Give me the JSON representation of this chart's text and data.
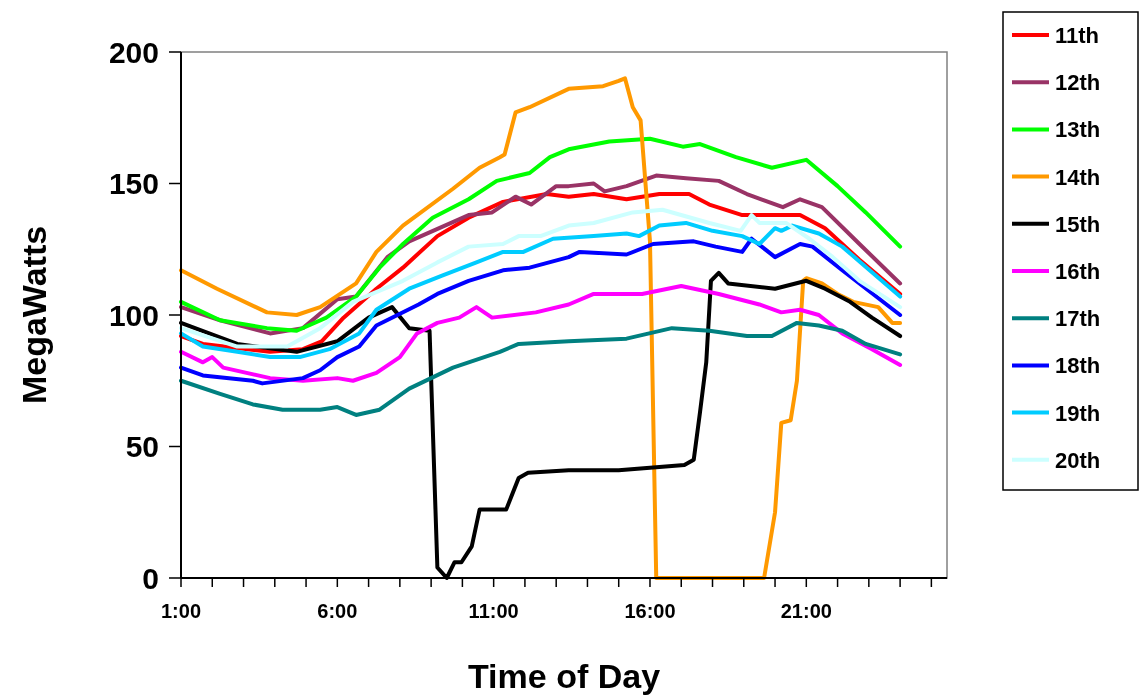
{
  "chart_data": {
    "type": "line",
    "xlabel": "Time of Day",
    "ylabel": "MegaWatts",
    "xlim": [
      1,
      25.5
    ],
    "ylim": [
      0,
      200
    ],
    "yticks": [
      0,
      50,
      100,
      150,
      200
    ],
    "xticks": [
      {
        "value": 1,
        "label": "1:00"
      },
      {
        "value": 2,
        "label": null
      },
      {
        "value": 3,
        "label": null
      },
      {
        "value": 4,
        "label": null
      },
      {
        "value": 5,
        "label": null
      },
      {
        "value": 6,
        "label": "6:00"
      },
      {
        "value": 7,
        "label": null
      },
      {
        "value": 8,
        "label": null
      },
      {
        "value": 9,
        "label": null
      },
      {
        "value": 10,
        "label": null
      },
      {
        "value": 11,
        "label": "11:00"
      },
      {
        "value": 12,
        "label": null
      },
      {
        "value": 13,
        "label": null
      },
      {
        "value": 14,
        "label": null
      },
      {
        "value": 15,
        "label": null
      },
      {
        "value": 16,
        "label": "16:00"
      },
      {
        "value": 17,
        "label": null
      },
      {
        "value": 18,
        "label": null
      },
      {
        "value": 19,
        "label": null
      },
      {
        "value": 20,
        "label": null
      },
      {
        "value": 21,
        "label": "21:00"
      },
      {
        "value": 22,
        "label": null
      },
      {
        "value": 23,
        "label": null
      },
      {
        "value": 24,
        "label": null
      },
      {
        "value": 25,
        "label": null
      }
    ],
    "legend": "right",
    "series": [
      {
        "name": "11th",
        "color": "#ff0000",
        "x": [
          1,
          1.7,
          3.85,
          4.9,
          5.5,
          6.2,
          7.25,
          8.1,
          9.2,
          10.2,
          11.3,
          12.7,
          13.4,
          14.2,
          15.25,
          16.3,
          17.25,
          17.9,
          18.95,
          20,
          20.8,
          21.6,
          22.7,
          24
        ],
        "values": [
          92,
          89,
          86,
          87,
          90,
          99,
          110,
          118,
          130,
          137,
          143,
          146,
          145,
          146,
          144,
          146,
          146,
          142,
          138,
          138,
          138,
          133,
          121,
          108
        ]
      },
      {
        "name": "12th",
        "color": "#993366",
        "x": [
          1,
          2.25,
          3.85,
          4.9,
          6,
          6.6,
          7.6,
          8.3,
          10.2,
          10.95,
          11.7,
          12.2,
          13,
          13.4,
          14.2,
          14.55,
          15.25,
          16.2,
          17.15,
          18.2,
          19.1,
          20.25,
          20.8,
          21.5,
          22.7,
          24
        ],
        "values": [
          103,
          98,
          93,
          95,
          106,
          107,
          122,
          128,
          138,
          139,
          145,
          142,
          149,
          149,
          150,
          147,
          149,
          153,
          152,
          151,
          146,
          141,
          144,
          141,
          127,
          112
        ]
      },
      {
        "name": "13th",
        "color": "#00ff00",
        "x": [
          1,
          2.25,
          3.75,
          4.7,
          5.65,
          6.6,
          7.35,
          8.1,
          9.05,
          10.2,
          11.1,
          12.15,
          12.8,
          13.4,
          14.7,
          16,
          17.05,
          17.6,
          18.75,
          19.9,
          21,
          22,
          22.9,
          24
        ],
        "values": [
          105,
          98,
          95,
          94,
          99,
          107,
          118,
          127,
          137,
          144,
          151,
          154,
          160,
          163,
          166,
          167,
          164,
          165,
          160,
          156,
          159,
          149,
          139,
          126
        ]
      },
      {
        "name": "14th",
        "color": "#ff9900",
        "x": [
          1,
          2.15,
          3.75,
          4.7,
          5.45,
          6.6,
          7.25,
          8.1,
          9.7,
          10.55,
          11.2,
          11.35,
          11.7,
          12.15,
          13.4,
          14.5,
          15,
          15.2,
          15.45,
          15.7,
          16,
          16.2,
          19.65,
          20,
          20.2,
          20.5,
          20.7,
          20.9,
          21,
          21.5,
          22,
          22.5,
          23.3,
          23.75,
          24
        ],
        "values": [
          117,
          110,
          101,
          100,
          103,
          112,
          124,
          134,
          148,
          156,
          160,
          161,
          177,
          179,
          186,
          187,
          189,
          190,
          179,
          174,
          128,
          0,
          0,
          25,
          59,
          60,
          75,
          113,
          114,
          112,
          108,
          105,
          103,
          97,
          97
        ]
      },
      {
        "name": "15th",
        "color": "#000000",
        "x": [
          1,
          2.8,
          4.7,
          6,
          7,
          7.75,
          8.3,
          8.95,
          9.2,
          9.5,
          9.75,
          9.97,
          10.3,
          10.55,
          11.4,
          11.8,
          12.1,
          13.4,
          15,
          16.1,
          17.1,
          17.4,
          17.6,
          17.8,
          17.95,
          18.2,
          18.5,
          20,
          21,
          21.6,
          22.4,
          23.1,
          24
        ],
        "values": [
          97,
          89,
          86,
          90,
          99,
          103,
          95,
          94,
          4,
          0,
          6,
          6,
          12,
          26,
          26,
          38,
          40,
          41,
          41,
          42,
          43,
          45,
          63,
          82,
          113,
          116,
          112,
          110,
          113,
          110,
          105,
          99,
          92
        ]
      },
      {
        "name": "16th",
        "color": "#ff00ff",
        "x": [
          1,
          1.7,
          2,
          2.35,
          3.85,
          4.9,
          6,
          6.5,
          7.25,
          8,
          8.55,
          9.2,
          9.9,
          10.45,
          10.95,
          12.35,
          13.4,
          14.2,
          15.75,
          17,
          18.2,
          19.5,
          20.2,
          20.8,
          21.4,
          22.15,
          23.1,
          24
        ],
        "values": [
          86,
          82,
          84,
          80,
          76,
          75,
          76,
          75,
          78,
          84,
          93,
          97,
          99,
          103,
          99,
          101,
          104,
          108,
          108,
          111,
          108,
          104,
          101,
          102,
          100,
          93,
          87,
          81
        ]
      },
      {
        "name": "17th",
        "color": "#008080",
        "x": [
          1,
          2.25,
          3.3,
          4.25,
          5.45,
          6,
          6.6,
          7.35,
          8.3,
          9.7,
          11.2,
          11.8,
          13.4,
          15.25,
          16.7,
          17.9,
          19.1,
          19.9,
          20.7,
          21.4,
          22.15,
          22.9,
          24
        ],
        "values": [
          75,
          70,
          66,
          64,
          64,
          65,
          62,
          64,
          72,
          80,
          86,
          89,
          90,
          91,
          95,
          94,
          92,
          92,
          97,
          96,
          94,
          89,
          85
        ]
      },
      {
        "name": "18th",
        "color": "#0000ff",
        "x": [
          1,
          1.7,
          3.3,
          3.6,
          4.9,
          5.45,
          6,
          6.7,
          7.25,
          8.6,
          9.2,
          10.2,
          11.3,
          12.15,
          13.4,
          13.75,
          15.25,
          16.1,
          17.4,
          18.1,
          18.95,
          19.25,
          20,
          20.8,
          21.2,
          22.15,
          24
        ],
        "values": [
          80,
          77,
          75,
          74,
          76,
          79,
          84,
          88,
          96,
          104,
          108,
          113,
          117,
          118,
          122,
          124,
          123,
          127,
          128,
          126,
          124,
          129,
          122,
          127,
          126,
          117,
          100
        ]
      },
      {
        "name": "19th",
        "color": "#00ccff",
        "x": [
          1,
          1.7,
          2.8,
          3.85,
          4.8,
          5.75,
          6.7,
          7.25,
          8.3,
          9.35,
          10.45,
          11.3,
          11.95,
          12.9,
          14.2,
          15.25,
          15.65,
          16.3,
          17.15,
          18,
          18.95,
          19.5,
          20,
          20.2,
          20.55,
          21.4,
          22.15,
          24
        ],
        "values": [
          93,
          88,
          86,
          84,
          84,
          87,
          93,
          102,
          110,
          115,
          120,
          124,
          124,
          129,
          130,
          131,
          130,
          134,
          135,
          132,
          130,
          127,
          133,
          132,
          134,
          131,
          126,
          107
        ]
      },
      {
        "name": "20th",
        "color": "#ccffff",
        "x": [
          1,
          2.8,
          4.4,
          5.45,
          6.5,
          8.1,
          9.2,
          10.2,
          11.3,
          11.8,
          12.5,
          13.4,
          14.2,
          15.45,
          16.4,
          17.9,
          18.9,
          19.25,
          19.5,
          20.35,
          21.1,
          21.85,
          22.7,
          24
        ],
        "values": [
          95,
          88,
          88,
          95,
          105,
          113,
          120,
          126,
          127,
          130,
          130,
          134,
          135,
          139,
          140,
          135,
          132,
          138,
          135,
          135,
          129,
          122,
          113,
          103
        ]
      }
    ]
  }
}
